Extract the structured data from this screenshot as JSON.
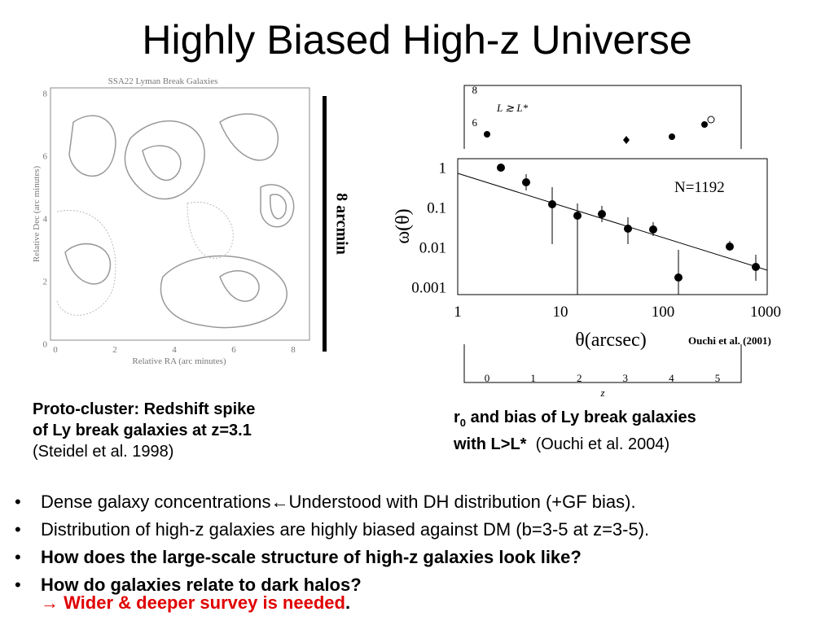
{
  "title": "Highly Biased High-z Universe",
  "left_figure": {
    "title": "SSA22 Lyman Break Galaxies",
    "x_label": "Relative RA (arc minutes)",
    "y_label": "Relative Dec (arc minutes)",
    "x_ticks": [
      "0",
      "2",
      "4",
      "6",
      "8"
    ],
    "y_ticks": [
      "8",
      "6",
      "4",
      "2",
      "0"
    ],
    "scale_bar": "8 arcmin"
  },
  "left_caption": {
    "bold_lines": [
      "Proto-cluster: Redshift spike",
      "of Ly break galaxies at z=3.1"
    ],
    "citation": "(Steidel et al. 1998)"
  },
  "right_figure": {
    "label": "N=1192",
    "x_label": "θ(arcsec)",
    "y_label": "ω(θ)",
    "x_ticks": [
      "1",
      "10",
      "100",
      "1000"
    ],
    "y_ticks": [
      "1",
      "0.1",
      "0.01",
      "0.001"
    ],
    "credit": "Ouchi et al. (2001)",
    "back_x_ticks": [
      "0",
      "1",
      "2",
      "3",
      "4",
      "5"
    ],
    "back_y_ticks": [
      "8",
      "6"
    ],
    "back_x_label": "z",
    "back_annotation": "L ≳ L*"
  },
  "right_caption": {
    "r": "r",
    "sub": "0",
    "bold_rest": " and bias of Ly break galaxies",
    "bold_line2": "with L>L*",
    "citation": "(Ouchi et al. 2004)"
  },
  "bullets": [
    {
      "text": "Dense galaxy concentrations←Understood with DH distribution (+GF bias).",
      "bold": false
    },
    {
      "text": "Distribution of high-z galaxies are highly biased against DM (b=3-5 at z=3-5).",
      "bold": false
    },
    {
      "text": "How does the large-scale structure of high-z galaxies look like?",
      "bold": true
    },
    {
      "text": "How do galaxies relate to dark halos?",
      "bold": true
    }
  ],
  "conclusion": "→ Wider & deeper survey is needed",
  "conclusion_end": "."
}
